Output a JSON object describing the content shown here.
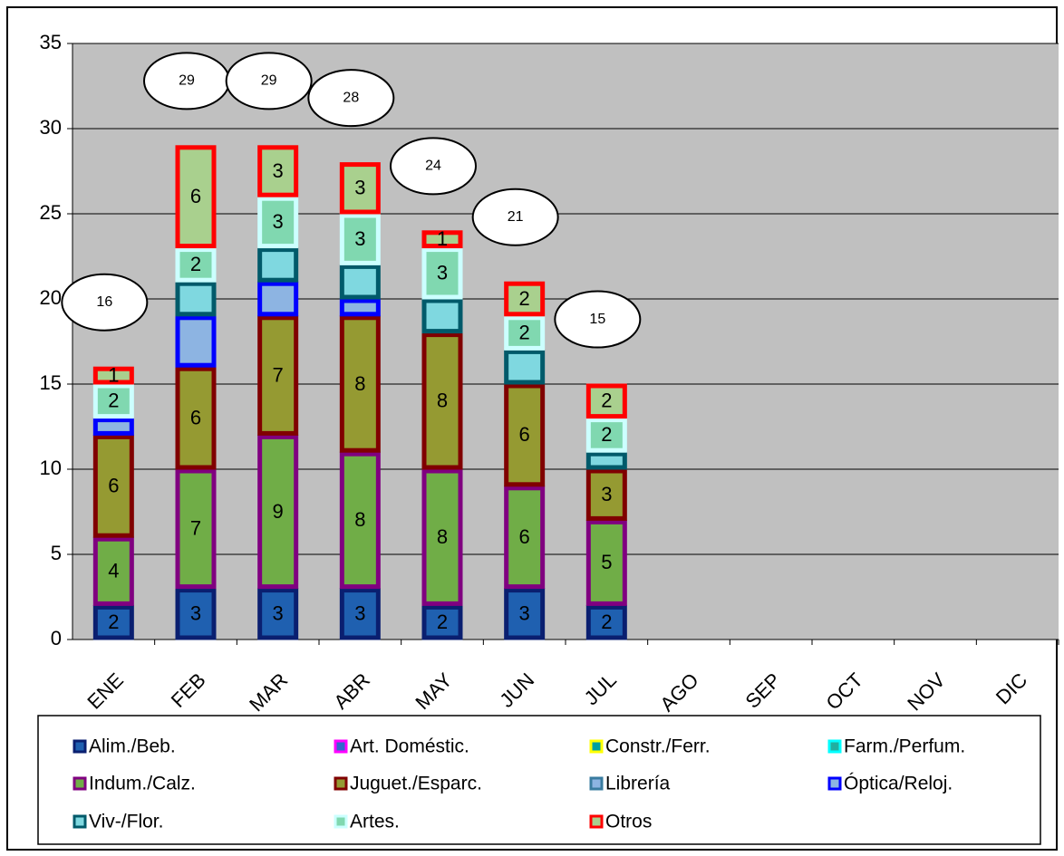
{
  "chart_data": {
    "type": "stacked_bar",
    "categories": [
      "ENE",
      "FEB",
      "MAR",
      "ABR",
      "MAY",
      "JUN",
      "JUL",
      "AGO",
      "SEP",
      "OCT",
      "NOV",
      "DIC"
    ],
    "series": [
      {
        "name": "Alim./Beb.",
        "color": "#1f60b0",
        "border_color": "#0a1f70",
        "labels": true,
        "values": [
          2,
          3,
          3,
          3,
          2,
          3,
          2,
          null,
          null,
          null,
          null,
          null
        ]
      },
      {
        "name": "Art. Doméstic.",
        "color": "#3366cc",
        "border_color": "#ff00ff",
        "labels": false,
        "values": [
          0,
          0,
          0,
          0,
          0,
          0,
          0,
          null,
          null,
          null,
          null,
          null
        ]
      },
      {
        "name": "Constr./Ferr.",
        "color": "#00a0a0",
        "border_color": "#ffff00",
        "labels": false,
        "values": [
          0,
          0,
          0,
          0,
          0,
          0,
          0,
          null,
          null,
          null,
          null,
          null
        ]
      },
      {
        "name": "Farm./Perfum.",
        "color": "#20b0a0",
        "border_color": "#00ffff",
        "labels": false,
        "values": [
          0,
          0,
          0,
          0,
          0,
          0,
          0,
          null,
          null,
          null,
          null,
          null
        ]
      },
      {
        "name": "Indum./Calz.",
        "color": "#70ad47",
        "border_color": "#800080",
        "labels": true,
        "values": [
          4,
          7,
          9,
          8,
          8,
          6,
          5,
          null,
          null,
          null,
          null,
          null
        ]
      },
      {
        "name": "Juguet./Esparc.",
        "color": "#959a32",
        "border_color": "#800000",
        "labels": true,
        "values": [
          6,
          6,
          7,
          8,
          8,
          6,
          3,
          null,
          null,
          null,
          null,
          null
        ]
      },
      {
        "name": "Librería",
        "color": "#8db4e2",
        "border_color": "#3a7ca0",
        "labels": false,
        "values": [
          0,
          0,
          0,
          0,
          0,
          0,
          0,
          null,
          null,
          null,
          null,
          null
        ]
      },
      {
        "name": "Óptica/Reloj.",
        "color": "#8db4e2",
        "border_color": "#0000ff",
        "labels": false,
        "values": [
          1,
          3,
          2,
          1,
          0,
          0,
          0,
          null,
          null,
          null,
          null,
          null
        ]
      },
      {
        "name": "Viv-/Flor.",
        "color": "#7fd8e0",
        "border_color": "#005a6a",
        "labels": false,
        "values": [
          0,
          2,
          2,
          2,
          2,
          2,
          1,
          null,
          null,
          null,
          null,
          null
        ]
      },
      {
        "name": "Artes.",
        "color": "#80d8b0",
        "border_color": "#ccffff",
        "labels": true,
        "values": [
          2,
          2,
          3,
          3,
          3,
          2,
          2,
          null,
          null,
          null,
          null,
          null
        ]
      },
      {
        "name": "Otros",
        "color": "#a9d08e",
        "border_color": "#ff0000",
        "labels": true,
        "values": [
          1,
          6,
          3,
          3,
          1,
          2,
          2,
          null,
          null,
          null,
          null,
          null
        ]
      }
    ],
    "totals": [
      16,
      29,
      29,
      28,
      24,
      21,
      15,
      null,
      null,
      null,
      null,
      null
    ],
    "ylim": [
      0,
      35
    ],
    "yticks": [
      0,
      5,
      10,
      15,
      20,
      25,
      30,
      35
    ],
    "grid": true,
    "plot_color": "#c0c0c0",
    "legend": "bottom"
  }
}
